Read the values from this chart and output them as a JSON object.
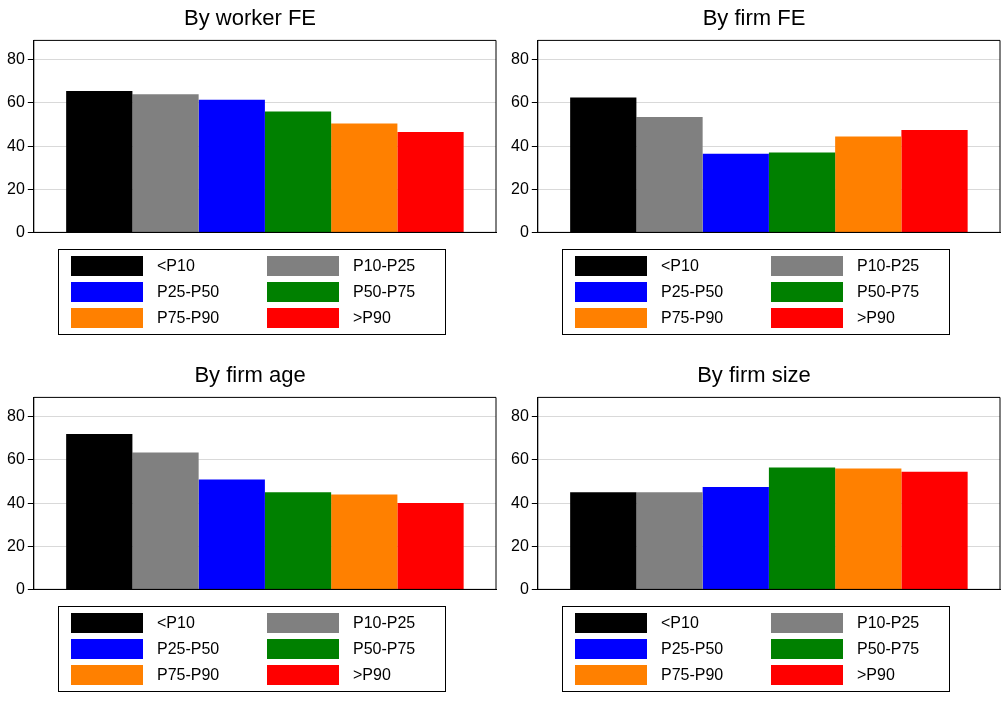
{
  "chart_data": [
    {
      "type": "bar",
      "title": "By worker FE",
      "categories": [
        null
      ],
      "series": [
        {
          "name": "<P10",
          "color": "#000000",
          "values": [
            65.5
          ]
        },
        {
          "name": "P10-P25",
          "color": "#808080",
          "values": [
            64
          ]
        },
        {
          "name": "P25-P50",
          "color": "#0000ff",
          "values": [
            61.5
          ]
        },
        {
          "name": "P50-P75",
          "color": "#008000",
          "values": [
            56
          ]
        },
        {
          "name": "P75-P90",
          "color": "#ff8000",
          "values": [
            50.5
          ]
        },
        {
          "name": ">P90",
          "color": "#ff0000",
          "values": [
            46.5
          ]
        }
      ],
      "ylim": [
        0,
        89
      ],
      "yticks": [
        0,
        20,
        40,
        60,
        80
      ],
      "grid": "y",
      "legend": "bottom"
    },
    {
      "type": "bar",
      "title": "By firm FE",
      "categories": [
        null
      ],
      "series": [
        {
          "name": "<P10",
          "color": "#000000",
          "values": [
            62.5
          ]
        },
        {
          "name": "P10-P25",
          "color": "#808080",
          "values": [
            53.5
          ]
        },
        {
          "name": "P25-P50",
          "color": "#0000ff",
          "values": [
            36.5
          ]
        },
        {
          "name": "P50-P75",
          "color": "#008000",
          "values": [
            37
          ]
        },
        {
          "name": "P75-P90",
          "color": "#ff8000",
          "values": [
            44.5
          ]
        },
        {
          "name": ">P90",
          "color": "#ff0000",
          "values": [
            47.5
          ]
        }
      ],
      "ylim": [
        0,
        89
      ],
      "yticks": [
        0,
        20,
        40,
        60,
        80
      ],
      "grid": "y",
      "legend": "bottom"
    },
    {
      "type": "bar",
      "title": "By firm age",
      "categories": [
        null
      ],
      "series": [
        {
          "name": "<P10",
          "color": "#000000",
          "values": [
            72
          ]
        },
        {
          "name": "P10-P25",
          "color": "#808080",
          "values": [
            63.5
          ]
        },
        {
          "name": "P25-P50",
          "color": "#0000ff",
          "values": [
            51
          ]
        },
        {
          "name": "P50-P75",
          "color": "#008000",
          "values": [
            45
          ]
        },
        {
          "name": "P75-P90",
          "color": "#ff8000",
          "values": [
            44
          ]
        },
        {
          "name": ">P90",
          "color": "#ff0000",
          "values": [
            40
          ]
        }
      ],
      "ylim": [
        0,
        89
      ],
      "yticks": [
        0,
        20,
        40,
        60,
        80
      ],
      "grid": "y",
      "legend": "bottom"
    },
    {
      "type": "bar",
      "title": "By firm size",
      "categories": [
        null
      ],
      "series": [
        {
          "name": "<P10",
          "color": "#000000",
          "values": [
            45
          ]
        },
        {
          "name": "P10-P25",
          "color": "#808080",
          "values": [
            45
          ]
        },
        {
          "name": "P25-P50",
          "color": "#0000ff",
          "values": [
            47.5
          ]
        },
        {
          "name": "P50-P75",
          "color": "#008000",
          "values": [
            56.5
          ]
        },
        {
          "name": "P75-P90",
          "color": "#ff8000",
          "values": [
            56
          ]
        },
        {
          "name": ">P90",
          "color": "#ff0000",
          "values": [
            54.5
          ]
        }
      ],
      "ylim": [
        0,
        89
      ],
      "yticks": [
        0,
        20,
        40,
        60,
        80
      ],
      "grid": "y",
      "legend": "bottom"
    }
  ]
}
